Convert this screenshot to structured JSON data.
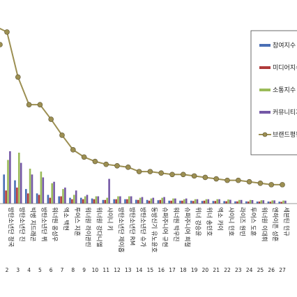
{
  "chart_data": {
    "type": "bar",
    "categories": [
      {
        "index": "2",
        "name": "방탄소년단 정국"
      },
      {
        "index": "3",
        "name": "방탄소년단 진"
      },
      {
        "index": "4",
        "name": "빅뱅 지드래곤"
      },
      {
        "index": "5",
        "name": "방탄소년단 뷔"
      },
      {
        "index": "6",
        "name": "워너원 옹성우"
      },
      {
        "index": "7",
        "name": "엑소 백현"
      },
      {
        "index": "8",
        "name": "투어스 지훈"
      },
      {
        "index": "9",
        "name": "워너원 라이관린"
      },
      {
        "index": "10",
        "name": "워너원 강다니엘"
      },
      {
        "index": "11",
        "name": "샤이니 키"
      },
      {
        "index": "12",
        "name": "방탄소년단 제이홉"
      },
      {
        "index": "13",
        "name": "방탄소년단 RM"
      },
      {
        "index": "14",
        "name": "방탄소년단 슈가"
      },
      {
        "index": "15",
        "name": "동방신기 유노윤호"
      },
      {
        "index": "16",
        "name": "슈퍼주니어 규현"
      },
      {
        "index": "17",
        "name": "워너원 박우진"
      },
      {
        "index": "18",
        "name": "슈퍼주니어 희철"
      },
      {
        "index": "19",
        "name": "위너 강승윤"
      },
      {
        "index": "20",
        "name": "위너 송민호"
      },
      {
        "index": "21",
        "name": "엑소 카이"
      },
      {
        "index": "22",
        "name": "샤이니 민호"
      },
      {
        "index": "23",
        "name": "라이즈 원빈"
      },
      {
        "index": "24",
        "name": "투어스 도훈"
      },
      {
        "index": "25",
        "name": "워너원 이대휘"
      },
      {
        "index": "26",
        "name": "엔하이픈 성훈"
      },
      {
        "index": "27",
        "name": "세븐틴 민규"
      }
    ],
    "series": [
      {
        "name": "참여지수",
        "color": "#4a6fb5",
        "values": [
          20,
          16,
          10,
          7,
          6,
          5,
          4,
          4,
          3.5,
          2.5,
          3,
          3,
          2.6,
          2.5,
          2.3,
          2,
          2,
          2,
          1.8,
          1.8,
          1.7,
          1.5,
          1.5,
          1.4,
          1.4,
          1.3
        ]
      },
      {
        "name": "미디어지수",
        "color": "#b03a3a",
        "values": [
          9,
          11,
          7,
          6,
          4,
          5,
          3,
          3,
          3,
          2.5,
          3,
          3,
          2.5,
          2,
          2.5,
          2,
          2,
          1.8,
          2,
          1.8,
          1.6,
          1.5,
          1.4,
          1.4,
          1.3,
          1.2
        ]
      },
      {
        "name": "소통지수",
        "color": "#9bbb59",
        "values": [
          30,
          35,
          24,
          22,
          14,
          10,
          6,
          5,
          5,
          4,
          5,
          5,
          4,
          3.5,
          4,
          3.5,
          3,
          3,
          3,
          3,
          2.8,
          2.5,
          2.5,
          2.3,
          2.2,
          2.1
        ]
      },
      {
        "name": "커뮤니티지수",
        "color": "#7458a6",
        "values": [
          36,
          28,
          20,
          18,
          15,
          11,
          9,
          6,
          5,
          17,
          5,
          5,
          4.5,
          4,
          4.5,
          3.5,
          3.5,
          3,
          3,
          3,
          2.6,
          2.5,
          2.4,
          2.3,
          2.2,
          2
        ]
      }
    ],
    "line_series": {
      "name": "브랜드평판지수",
      "color": "#9c8f52",
      "values": [
        118,
        87,
        68,
        68,
        58,
        47,
        37,
        32,
        29,
        27,
        26,
        25,
        22,
        22,
        21,
        20,
        20,
        19,
        18,
        17,
        16,
        16,
        15,
        14,
        13,
        13
      ]
    },
    "ylim": [
      0,
      140
    ],
    "legend_position": "right",
    "grid": false
  }
}
